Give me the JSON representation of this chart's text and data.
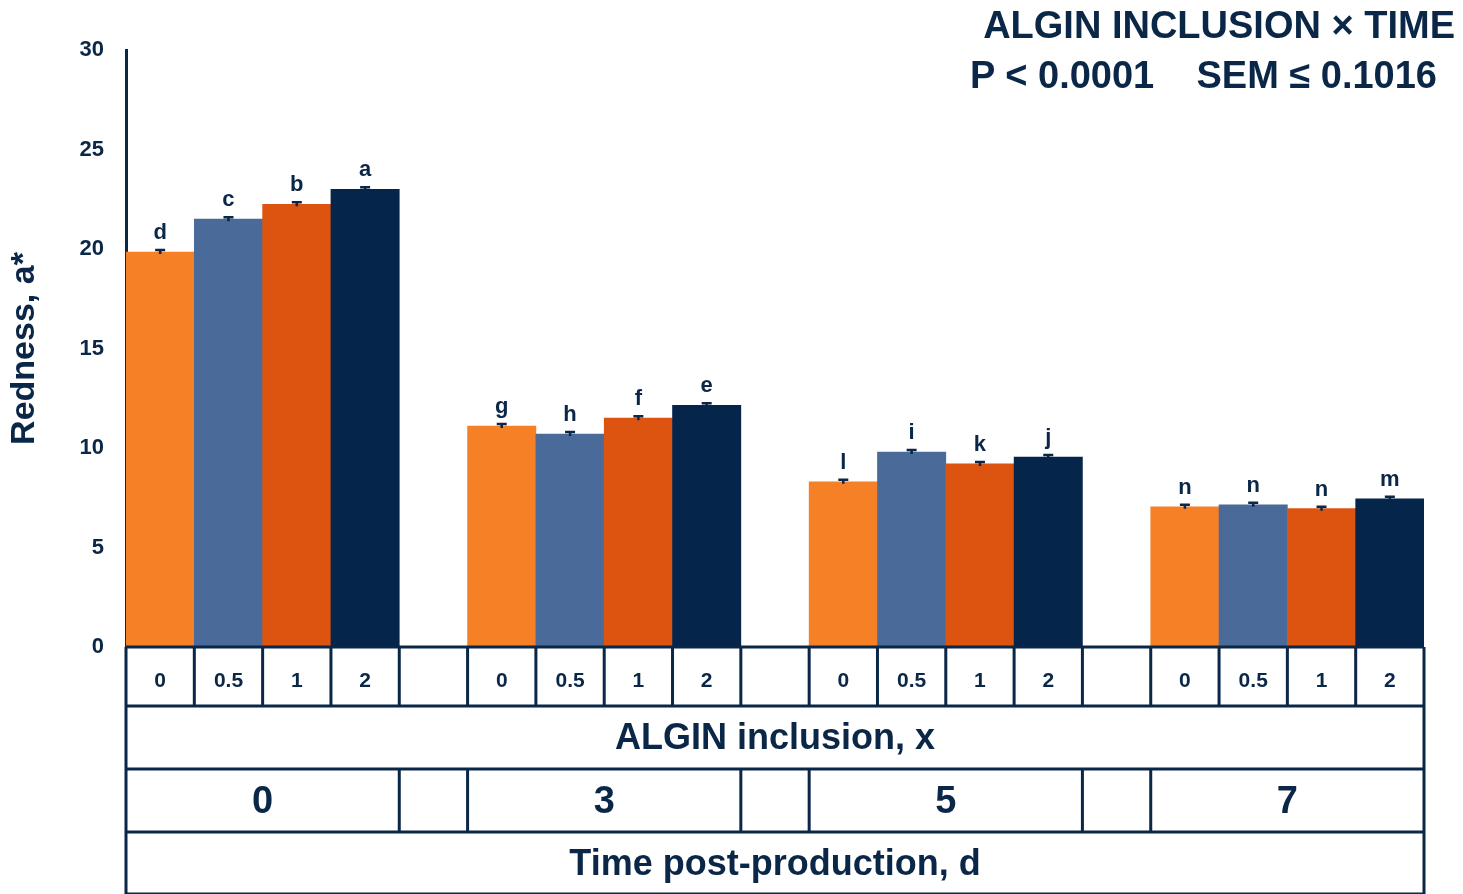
{
  "chart_data": {
    "type": "bar",
    "title": "ALGIN INCLUSION × TIME",
    "subtitle": "P < 0.0001    SEM ≤ 0.1016",
    "ylabel": "Redness, a*",
    "xlabel": "ALGIN inclusion, x",
    "categories": [
      "0",
      "0.5",
      "1",
      "2",
      null,
      "0",
      "0.5",
      "1",
      "2",
      null,
      "0",
      "0.5",
      "1",
      "2",
      null,
      "0",
      "0.5",
      "1",
      "2"
    ],
    "values": [
      19.85,
      21.5,
      22.25,
      23.0,
      null,
      11.1,
      10.7,
      11.5,
      12.15,
      null,
      8.3,
      9.8,
      9.2,
      9.55,
      null,
      7.05,
      7.15,
      6.95,
      7.45
    ],
    "errors": [
      0.1,
      0.1,
      0.1,
      0.1,
      null,
      0.1,
      0.1,
      0.1,
      0.1,
      null,
      0.1,
      0.1,
      0.1,
      0.1,
      null,
      0.1,
      0.1,
      0.1,
      0.1
    ],
    "value_labels": [
      "d",
      "c",
      "b",
      "a",
      null,
      "g",
      "h",
      "f",
      "e",
      null,
      "l",
      "i",
      "k",
      "j",
      null,
      "n",
      "n",
      "n",
      "m"
    ],
    "colors": [
      "#f58025",
      "#4a6b9a",
      "#dc540f",
      "#06254b",
      null,
      "#f58025",
      "#4a6b9a",
      "#dc540f",
      "#06254b",
      null,
      "#f58025",
      "#4a6b9a",
      "#dc540f",
      "#06254b",
      null,
      "#f58025",
      "#4a6b9a",
      "#dc540f",
      "#06254b"
    ],
    "ylim": [
      0,
      30
    ],
    "yticks": [
      0,
      5,
      10,
      15,
      20,
      25,
      30
    ],
    "grid": false,
    "legend": false,
    "annotations": [
      "0",
      "3",
      "5",
      "7",
      "Time post-production, d"
    ]
  }
}
